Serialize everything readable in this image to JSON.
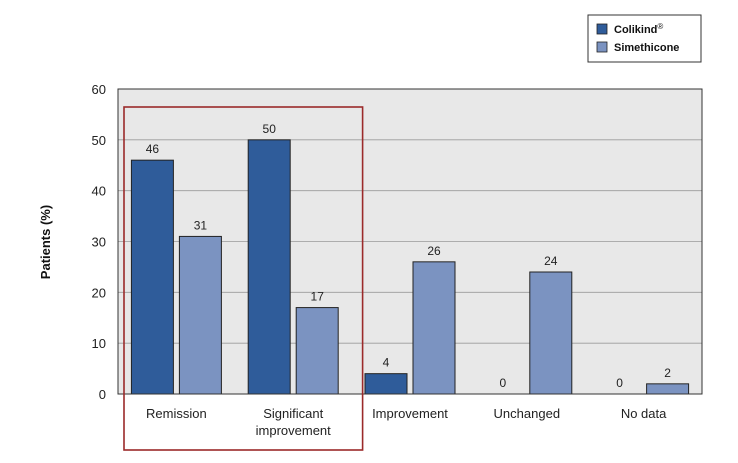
{
  "chart_data": {
    "type": "bar",
    "categories": [
      [
        "Remission"
      ],
      [
        "Significant",
        "improvement"
      ],
      [
        "Improvement"
      ],
      [
        "Unchanged"
      ],
      [
        "No data"
      ]
    ],
    "series": [
      {
        "name": "Colikind",
        "name_superscript": "®",
        "color": "#2f5c9a",
        "values": [
          46,
          50,
          4,
          0,
          0
        ]
      },
      {
        "name": "Simethicone",
        "color": "#7b93c1",
        "values": [
          31,
          17,
          26,
          24,
          2
        ]
      }
    ],
    "ylabel": "Patients (%)",
    "ylim": [
      0,
      60
    ],
    "yticks": [
      0,
      10,
      20,
      30,
      40,
      50,
      60
    ],
    "grid": true,
    "legend": "top-right",
    "highlight": {
      "categories": [
        0,
        1
      ],
      "color": "#9b2a2a"
    },
    "colors": {
      "plot_background": "#e8e8e8",
      "grid": "#9a9a9a",
      "axis": "#333333"
    }
  }
}
